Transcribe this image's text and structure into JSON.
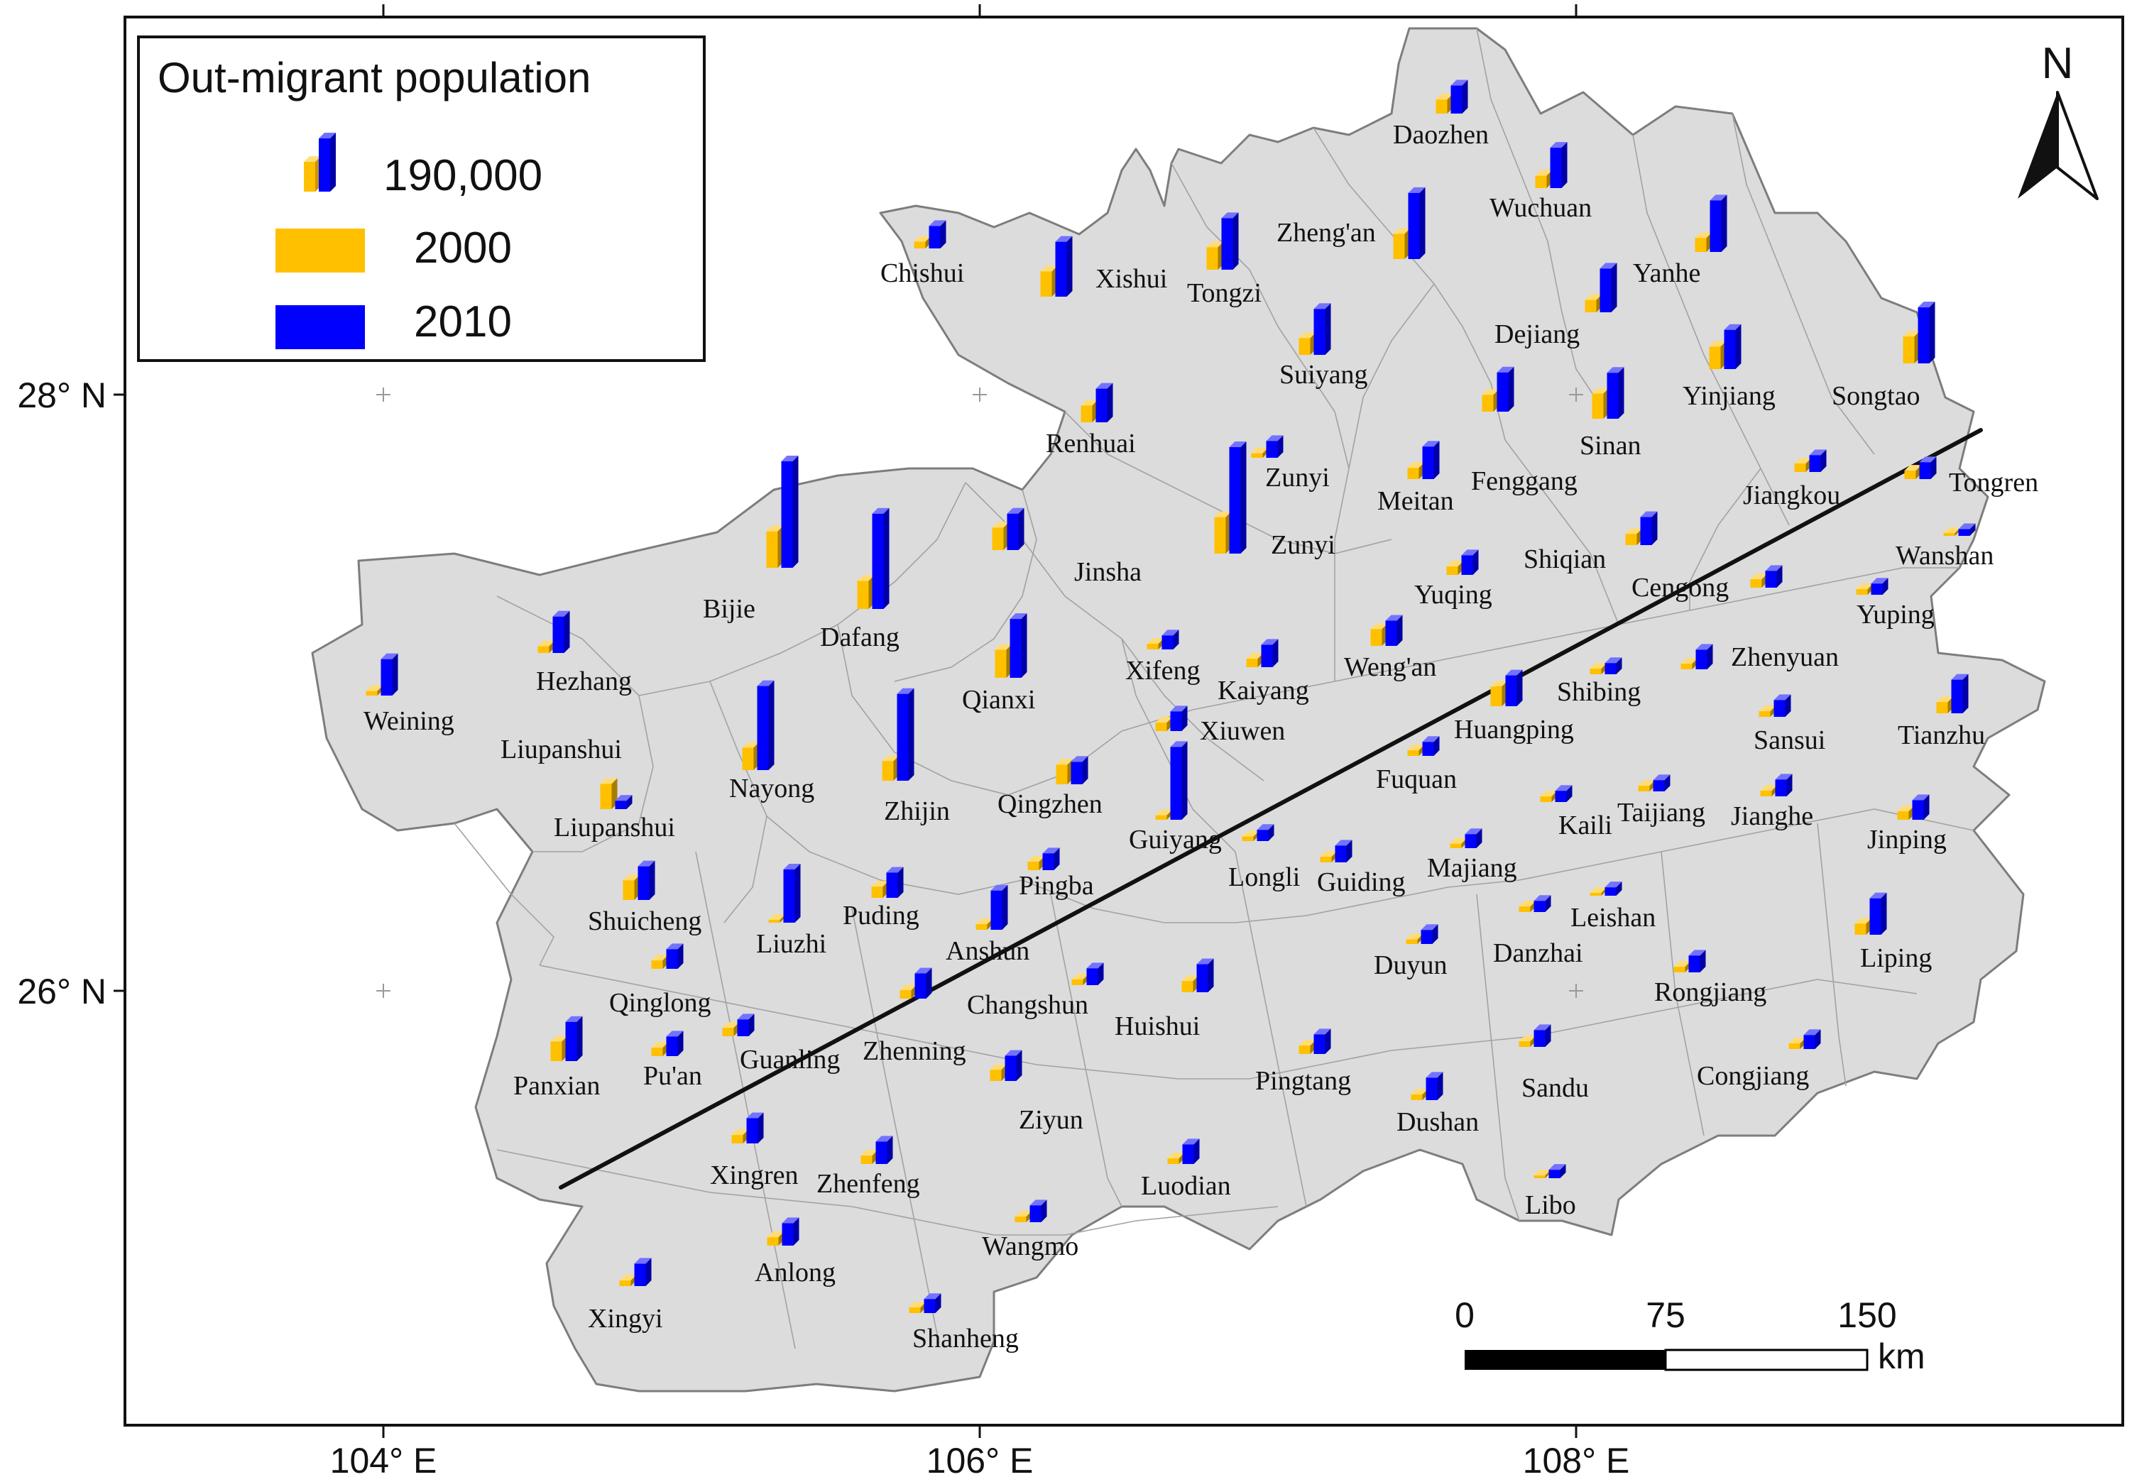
{
  "legend": {
    "title": "Out-migrant population",
    "size_value": "190,000",
    "series_2000": "2000",
    "series_2010": "2010"
  },
  "colors": {
    "y2000": "#ffc000",
    "y2010": "#0000ff"
  },
  "axes": {
    "lon_labels": [
      "104° E",
      "106° E",
      "108° E"
    ],
    "lat_labels": [
      "28° N",
      "26° N"
    ]
  },
  "north_label": "N",
  "scale_bar": {
    "labels": [
      "0",
      "75",
      "150"
    ],
    "unit": "km"
  },
  "counties": [
    {
      "name": "Daozhen",
      "v2000": 25000,
      "v2010": 50000
    },
    {
      "name": "Wuchuan",
      "v2000": 22000,
      "v2010": 72000
    },
    {
      "name": "Zheng'an",
      "v2000": 45000,
      "v2010": 118000
    },
    {
      "name": "Yanhe",
      "v2000": 25000,
      "v2010": 92000
    },
    {
      "name": "Chishui",
      "v2000": 12000,
      "v2010": 40000
    },
    {
      "name": "Xishui",
      "v2000": 45000,
      "v2010": 98000
    },
    {
      "name": "Tongzi",
      "v2000": 40000,
      "v2010": 92000
    },
    {
      "name": "Dejiang",
      "v2000": 22000,
      "v2010": 78000
    },
    {
      "name": "Suiyang",
      "v2000": 30000,
      "v2010": 82000
    },
    {
      "name": "Yinjiang",
      "v2000": 40000,
      "v2010": 70000
    },
    {
      "name": "Songtao",
      "v2000": 48000,
      "v2010": 100000
    },
    {
      "name": "Renhuai",
      "v2000": 30000,
      "v2010": 60000
    },
    {
      "name": "Sinan",
      "v2000": 45000,
      "v2010": 82000
    },
    {
      "name": "Zunyi",
      "v2000": 8000,
      "v2010": 30000
    },
    {
      "name": "Meitan",
      "v2000": 20000,
      "v2010": 58000
    },
    {
      "name": "Fenggang",
      "v2000": 30000,
      "v2010": 70000
    },
    {
      "name": "Jiangkou",
      "v2000": 15000,
      "v2010": 30000
    },
    {
      "name": "Tongren",
      "v2000": 15000,
      "v2010": 30000
    },
    {
      "name": "Zunyi",
      "v2000": 65000,
      "v2010": 190000
    },
    {
      "name": "Jinsha",
      "v2000": 40000,
      "v2010": 65000
    },
    {
      "name": "Shiqian",
      "v2000": 20000,
      "v2010": 50000
    },
    {
      "name": "Wanshan",
      "v2000": 5000,
      "v2010": 12000
    },
    {
      "name": "Bijie",
      "v2000": 65000,
      "v2010": 190000
    },
    {
      "name": "Dafang",
      "v2000": 50000,
      "v2010": 170000
    },
    {
      "name": "Yuqing",
      "v2000": 15000,
      "v2010": 35000
    },
    {
      "name": "Cengong",
      "v2000": 15000,
      "v2010": 30000
    },
    {
      "name": "Yuping",
      "v2000": 10000,
      "v2010": 20000
    },
    {
      "name": "Hezhang",
      "v2000": 12000,
      "v2010": 65000
    },
    {
      "name": "Xifeng",
      "v2000": 10000,
      "v2010": 25000
    },
    {
      "name": "Kaiyang",
      "v2000": 15000,
      "v2010": 40000
    },
    {
      "name": "Weng'an",
      "v2000": 30000,
      "v2010": 45000
    },
    {
      "name": "Qianxi",
      "v2000": 50000,
      "v2010": 105000
    },
    {
      "name": "Weining",
      "v2000": 8000,
      "v2010": 65000
    },
    {
      "name": "Zhenyuan",
      "v2000": 10000,
      "v2010": 35000
    },
    {
      "name": "Shibing",
      "v2000": 10000,
      "v2010": 20000
    },
    {
      "name": "Huangping",
      "v2000": 35000,
      "v2010": 55000
    },
    {
      "name": "Xiuwen",
      "v2000": 15000,
      "v2010": 35000
    },
    {
      "name": "Tianzhu",
      "v2000": 20000,
      "v2010": 60000
    },
    {
      "name": "Sansui",
      "v2000": 10000,
      "v2010": 30000
    },
    {
      "name": "Liupanshui",
      "v2000": 45000,
      "v2010": 15000
    },
    {
      "name": "Nayong",
      "v2000": 40000,
      "v2010": 150000
    },
    {
      "name": "Zhijin",
      "v2000": 35000,
      "v2010": 155000
    },
    {
      "name": "Fuquan",
      "v2000": 10000,
      "v2010": 25000
    },
    {
      "name": "Qingzhen",
      "v2000": 35000,
      "v2010": 40000
    },
    {
      "name": "Kaili",
      "v2000": 10000,
      "v2010": 20000
    },
    {
      "name": "Taijiang",
      "v2000": 10000,
      "v2010": 20000
    },
    {
      "name": "Jianghe",
      "v2000": 10000,
      "v2010": 30000
    },
    {
      "name": "Guiyang",
      "v2000": 8000,
      "v2010": 130000
    },
    {
      "name": "Jinping",
      "v2000": 15000,
      "v2010": 35000
    },
    {
      "name": "Longli",
      "v2000": 8000,
      "v2010": 20000
    },
    {
      "name": "Guiding",
      "v2000": 10000,
      "v2010": 30000
    },
    {
      "name": "Majiang",
      "v2000": 8000,
      "v2010": 25000
    },
    {
      "name": "Shuicheng",
      "v2000": 35000,
      "v2010": 60000
    },
    {
      "name": "Pingba",
      "v2000": 15000,
      "v2010": 30000
    },
    {
      "name": "Puding",
      "v2000": 20000,
      "v2010": 45000
    },
    {
      "name": "Liuzhi",
      "v2000": 5000,
      "v2010": 95000
    },
    {
      "name": "Leishan",
      "v2000": 5000,
      "v2010": 15000
    },
    {
      "name": "Anshun",
      "v2000": 10000,
      "v2010": 70000
    },
    {
      "name": "Danzhai",
      "v2000": 10000,
      "v2010": 20000
    },
    {
      "name": "Duyun",
      "v2000": 8000,
      "v2010": 25000
    },
    {
      "name": "Liping",
      "v2000": 20000,
      "v2010": 65000
    },
    {
      "name": "Rongjiang",
      "v2000": 10000,
      "v2010": 30000
    },
    {
      "name": "Huishui",
      "v2000": 20000,
      "v2010": 50000
    },
    {
      "name": "Changshun",
      "v2000": 10000,
      "v2010": 30000
    },
    {
      "name": "Qinglong",
      "v2000": 15000,
      "v2010": 35000
    },
    {
      "name": "Zhenning",
      "v2000": 15000,
      "v2010": 45000
    },
    {
      "name": "Panxian",
      "v2000": 35000,
      "v2010": 70000
    },
    {
      "name": "Guanling",
      "v2000": 15000,
      "v2010": 30000
    },
    {
      "name": "Pu'an",
      "v2000": 15000,
      "v2010": 35000
    },
    {
      "name": "Pingtang",
      "v2000": 15000,
      "v2010": 35000
    },
    {
      "name": "Sandu",
      "v2000": 10000,
      "v2010": 30000
    },
    {
      "name": "Congjiang",
      "v2000": 10000,
      "v2010": 25000
    },
    {
      "name": "Ziyun",
      "v2000": 20000,
      "v2010": 45000
    },
    {
      "name": "Dushan",
      "v2000": 10000,
      "v2010": 40000
    },
    {
      "name": "Xingren",
      "v2000": 15000,
      "v2010": 45000
    },
    {
      "name": "Zhenfeng",
      "v2000": 15000,
      "v2010": 40000
    },
    {
      "name": "Luodian",
      "v2000": 10000,
      "v2010": 35000
    },
    {
      "name": "Libo",
      "v2000": 5000,
      "v2010": 15000
    },
    {
      "name": "Wangmo",
      "v2000": 10000,
      "v2010": 30000
    },
    {
      "name": "Anlong",
      "v2000": 15000,
      "v2010": 40000
    },
    {
      "name": "Xingyi",
      "v2000": 10000,
      "v2010": 40000
    },
    {
      "name": "Shanheng",
      "v2000": 10000,
      "v2010": 25000
    }
  ]
}
